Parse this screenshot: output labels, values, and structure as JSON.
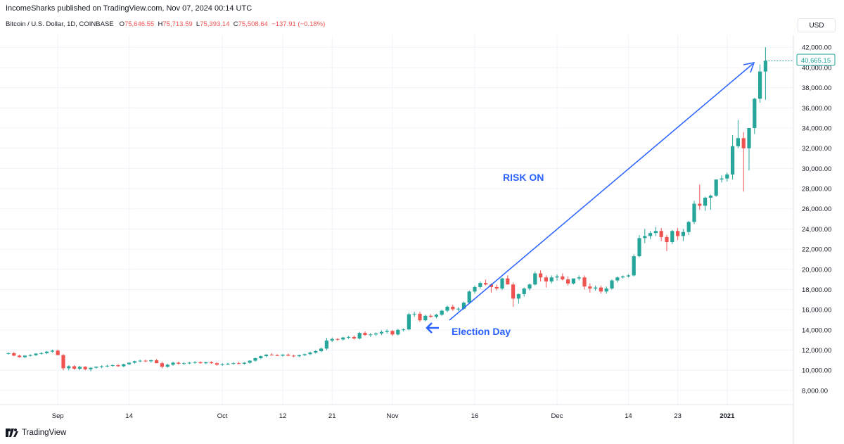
{
  "header": {
    "published": "IncomeSharks published on TradingView.com, Nov 07, 2024 00:14 UTC",
    "symbol": "Bitcoin / U.S. Dollar, 1D, COINBASE",
    "ohlc_o_label": "O",
    "ohlc_o": "75,646.55",
    "ohlc_h_label": "H",
    "ohlc_h": "75,713.59",
    "ohlc_l_label": "L",
    "ohlc_l": "75,393.14",
    "ohlc_c_label": "C",
    "ohlc_c": "75,508.64",
    "change": "−137.91 (−0.18%)"
  },
  "currency": "USD",
  "footer": {
    "brand": "TradingView"
  },
  "colors": {
    "up": "#26a69a",
    "down": "#ef5350",
    "accent": "#2962ff",
    "grid": "#f0f3fa"
  },
  "chart_data": {
    "type": "candlestick",
    "ylim": [
      6600,
      43200
    ],
    "y_ticks": [
      "8,000.00",
      "10,000.00",
      "12,000.00",
      "14,000.00",
      "16,000.00",
      "18,000.00",
      "20,000.00",
      "22,000.00",
      "24,000.00",
      "26,000.00",
      "28,000.00",
      "30,000.00",
      "32,000.00",
      "34,000.00",
      "36,000.00",
      "38,000.00",
      "40,000.00",
      "42,000.00"
    ],
    "x_ticks": [
      {
        "label": "Sep",
        "day": 9
      },
      {
        "label": "14",
        "day": 22
      },
      {
        "label": "Oct",
        "day": 39
      },
      {
        "label": "12",
        "day": 50
      },
      {
        "label": "21",
        "day": 59
      },
      {
        "label": "Nov",
        "day": 70
      },
      {
        "label": "16",
        "day": 85
      },
      {
        "label": "Dec",
        "day": 100
      },
      {
        "label": "14",
        "day": 113
      },
      {
        "label": "23",
        "day": 122
      },
      {
        "label": "2021",
        "day": 131
      }
    ],
    "last_price": "40,665.15",
    "last_price_value": 40665,
    "candles": [
      [
        11650,
        11750,
        11550,
        11700
      ],
      [
        11700,
        11800,
        11400,
        11450
      ],
      [
        11450,
        11550,
        11250,
        11300
      ],
      [
        11300,
        11500,
        11200,
        11450
      ],
      [
        11450,
        11600,
        11350,
        11500
      ],
      [
        11500,
        11700,
        11400,
        11650
      ],
      [
        11650,
        11800,
        11550,
        11700
      ],
      [
        11700,
        11900,
        11600,
        11850
      ],
      [
        11850,
        12050,
        11750,
        11950
      ],
      [
        11950,
        12050,
        11800,
        11500
      ],
      [
        11500,
        11600,
        10000,
        10200
      ],
      [
        10200,
        10500,
        10000,
        10400
      ],
      [
        10400,
        10500,
        10050,
        10150
      ],
      [
        10150,
        10450,
        10000,
        10350
      ],
      [
        10350,
        10400,
        10000,
        10100
      ],
      [
        10100,
        10300,
        9900,
        10250
      ],
      [
        10250,
        10400,
        10150,
        10350
      ],
      [
        10350,
        10500,
        10200,
        10400
      ],
      [
        10400,
        10550,
        10300,
        10450
      ],
      [
        10450,
        10600,
        10350,
        10500
      ],
      [
        10500,
        10600,
        10350,
        10400
      ],
      [
        10400,
        10650,
        10300,
        10600
      ],
      [
        10600,
        10800,
        10500,
        10750
      ],
      [
        10750,
        10950,
        10650,
        10900
      ],
      [
        10900,
        11050,
        10800,
        10950
      ],
      [
        10950,
        11050,
        10800,
        10900
      ],
      [
        10900,
        11050,
        10750,
        11000
      ],
      [
        11000,
        11100,
        10800,
        10700
      ],
      [
        10700,
        10850,
        10200,
        10350
      ],
      [
        10350,
        10650,
        10250,
        10550
      ],
      [
        10550,
        10850,
        10450,
        10750
      ],
      [
        10750,
        10850,
        10550,
        10650
      ],
      [
        10650,
        10800,
        10550,
        10700
      ],
      [
        10700,
        10850,
        10600,
        10750
      ],
      [
        10750,
        10900,
        10650,
        10800
      ],
      [
        10800,
        10900,
        10650,
        10700
      ],
      [
        10700,
        10850,
        10600,
        10800
      ],
      [
        10800,
        10900,
        10650,
        10700
      ],
      [
        10700,
        10800,
        10450,
        10550
      ],
      [
        10550,
        10700,
        10450,
        10600
      ],
      [
        10600,
        10750,
        10500,
        10650
      ],
      [
        10650,
        10800,
        10550,
        10700
      ],
      [
        10700,
        10850,
        10600,
        10650
      ],
      [
        10650,
        10800,
        10550,
        10750
      ],
      [
        10750,
        11000,
        10650,
        10950
      ],
      [
        10950,
        11250,
        10850,
        11200
      ],
      [
        11200,
        11450,
        11100,
        11400
      ],
      [
        11400,
        11600,
        11300,
        11550
      ],
      [
        11550,
        11700,
        11450,
        11500
      ],
      [
        11500,
        11600,
        11400,
        11450
      ],
      [
        11450,
        11600,
        11350,
        11550
      ],
      [
        11550,
        11650,
        11400,
        11450
      ],
      [
        11450,
        11550,
        11300,
        11400
      ],
      [
        11400,
        11550,
        11300,
        11500
      ],
      [
        11500,
        11650,
        11400,
        11600
      ],
      [
        11600,
        11850,
        11500,
        11750
      ],
      [
        11750,
        12000,
        11650,
        11900
      ],
      [
        11900,
        12250,
        11800,
        12150
      ],
      [
        12150,
        13200,
        12000,
        12950
      ],
      [
        12950,
        13250,
        12800,
        13100
      ],
      [
        13100,
        13200,
        12900,
        13050
      ],
      [
        13050,
        13300,
        12950,
        13250
      ],
      [
        13250,
        13400,
        13100,
        13300
      ],
      [
        13300,
        13450,
        13050,
        13150
      ],
      [
        13150,
        13800,
        13050,
        13700
      ],
      [
        13700,
        13850,
        13400,
        13500
      ],
      [
        13500,
        13700,
        13300,
        13550
      ],
      [
        13550,
        13750,
        13400,
        13650
      ],
      [
        13650,
        13950,
        13500,
        13800
      ],
      [
        13800,
        14050,
        13650,
        13900
      ],
      [
        13900,
        14000,
        13400,
        13550
      ],
      [
        13550,
        14100,
        13450,
        14000
      ],
      [
        14000,
        14150,
        13850,
        14050
      ],
      [
        14050,
        15700,
        13950,
        15550
      ],
      [
        15550,
        15800,
        15300,
        15600
      ],
      [
        15600,
        15800,
        14800,
        14950
      ],
      [
        14950,
        15500,
        14850,
        15400
      ],
      [
        15400,
        15550,
        15200,
        15300
      ],
      [
        15300,
        15600,
        15150,
        15500
      ],
      [
        15500,
        16000,
        15400,
        15900
      ],
      [
        15900,
        16400,
        15750,
        16300
      ],
      [
        16300,
        16500,
        15900,
        16050
      ],
      [
        16050,
        16250,
        15850,
        16100
      ],
      [
        16100,
        16800,
        16000,
        16700
      ],
      [
        16700,
        17900,
        16600,
        17800
      ],
      [
        17800,
        18400,
        17600,
        18250
      ],
      [
        18250,
        18800,
        18100,
        18650
      ],
      [
        18650,
        19000,
        18400,
        18500
      ],
      [
        18500,
        18600,
        17700,
        18250
      ],
      [
        18250,
        18500,
        17900,
        18100
      ],
      [
        18100,
        19200,
        17950,
        19100
      ],
      [
        19100,
        19400,
        18800,
        18500
      ],
      [
        18500,
        18700,
        16300,
        17100
      ],
      [
        17100,
        17600,
        16600,
        17550
      ],
      [
        17550,
        18200,
        17300,
        18100
      ],
      [
        18100,
        18600,
        17900,
        18500
      ],
      [
        18500,
        19800,
        18400,
        19600
      ],
      [
        19600,
        19900,
        18800,
        19200
      ],
      [
        19200,
        19400,
        18200,
        18800
      ],
      [
        18800,
        19400,
        18600,
        19200
      ],
      [
        19200,
        19500,
        18900,
        19300
      ],
      [
        19300,
        19600,
        18900,
        19000
      ],
      [
        19000,
        19300,
        18400,
        18600
      ],
      [
        18600,
        19000,
        18500,
        19100
      ],
      [
        19100,
        19400,
        18900,
        19200
      ],
      [
        19200,
        19400,
        18000,
        18300
      ],
      [
        18300,
        18600,
        17700,
        18100
      ],
      [
        18100,
        18400,
        17900,
        18200
      ],
      [
        18200,
        18400,
        17600,
        17800
      ],
      [
        17800,
        18300,
        17600,
        18100
      ],
      [
        18100,
        19000,
        18000,
        18900
      ],
      [
        18900,
        19300,
        18700,
        19200
      ],
      [
        19200,
        19400,
        19100,
        19300
      ],
      [
        19300,
        19500,
        19200,
        19400
      ],
      [
        19400,
        21500,
        19300,
        21300
      ],
      [
        21300,
        23400,
        21200,
        23100
      ],
      [
        23100,
        24000,
        22600,
        23300
      ],
      [
        23300,
        23800,
        23000,
        23600
      ],
      [
        23600,
        24200,
        23300,
        23800
      ],
      [
        23800,
        24100,
        22800,
        23200
      ],
      [
        23200,
        23400,
        21800,
        22700
      ],
      [
        22700,
        23900,
        22500,
        23800
      ],
      [
        23800,
        24100,
        22900,
        23300
      ],
      [
        23300,
        24000,
        22800,
        23700
      ],
      [
        23700,
        24800,
        23400,
        24700
      ],
      [
        24700,
        26800,
        24500,
        26500
      ],
      [
        26500,
        28400,
        25900,
        26300
      ],
      [
        26300,
        27200,
        25800,
        27100
      ],
      [
        27100,
        27400,
        25900,
        27300
      ],
      [
        27300,
        28900,
        27200,
        28900
      ],
      [
        28900,
        29300,
        28600,
        29000
      ],
      [
        29000,
        29600,
        28700,
        29400
      ],
      [
        29400,
        33300,
        28900,
        32200
      ],
      [
        32200,
        34800,
        32000,
        33000
      ],
      [
        33000,
        33600,
        27700,
        32000
      ],
      [
        32000,
        34000,
        29800,
        34000
      ],
      [
        34000,
        37000,
        33400,
        36900
      ],
      [
        36900,
        40300,
        36500,
        39600
      ],
      [
        39600,
        42000,
        36800,
        40665
      ]
    ]
  },
  "annotations": {
    "risk_on": "RISK ON",
    "election_day": "Election Day"
  }
}
